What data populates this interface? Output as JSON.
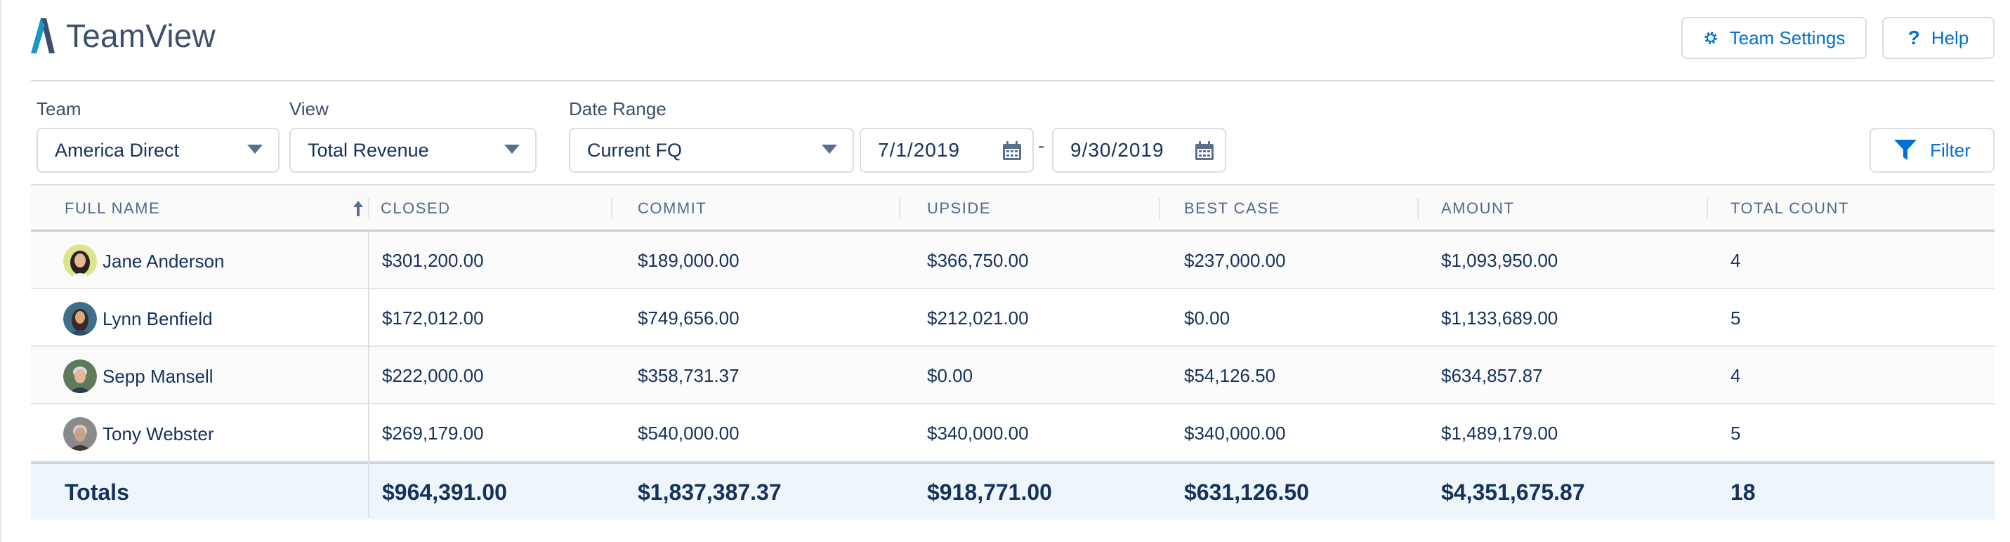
{
  "app": {
    "title": "TeamView"
  },
  "header": {
    "team_settings_label": "Team Settings",
    "help_label": "Help"
  },
  "filters": {
    "team_label": "Team",
    "team_value": "America Direct",
    "view_label": "View",
    "view_value": "Total Revenue",
    "date_range_label": "Date Range",
    "date_range_value": "Current FQ",
    "start_date": "7/1/2019",
    "separator": "-",
    "end_date": "9/30/2019",
    "filter_label": "Filter"
  },
  "table": {
    "columns": [
      "FULL NAME",
      "CLOSED",
      "COMMIT",
      "UPSIDE",
      "BEST CASE",
      "AMOUNT",
      "TOTAL COUNT"
    ],
    "sorted_column": "FULL NAME",
    "sort_direction": "ascending",
    "rows": [
      {
        "name": "Jane Anderson",
        "closed": "$301,200.00",
        "commit": "$189,000.00",
        "upside": "$366,750.00",
        "best_case": "$237,000.00",
        "amount": "$1,093,950.00",
        "total_count": "4"
      },
      {
        "name": "Lynn Benfield",
        "closed": "$172,012.00",
        "commit": "$749,656.00",
        "upside": "$212,021.00",
        "best_case": "$0.00",
        "amount": "$1,133,689.00",
        "total_count": "5"
      },
      {
        "name": "Sepp Mansell",
        "closed": "$222,000.00",
        "commit": "$358,731.37",
        "upside": "$0.00",
        "best_case": "$54,126.50",
        "amount": "$634,857.87",
        "total_count": "4"
      },
      {
        "name": "Tony Webster",
        "closed": "$269,179.00",
        "commit": "$540,000.00",
        "upside": "$340,000.00",
        "best_case": "$340,000.00",
        "amount": "$1,489,179.00",
        "total_count": "5"
      }
    ],
    "totals": {
      "label": "Totals",
      "closed": "$964,391.00",
      "commit": "$1,837,387.37",
      "upside": "$918,771.00",
      "best_case": "$631,126.50",
      "amount": "$4,351,675.87",
      "total_count": "18"
    }
  },
  "colors": {
    "accent": "#0070d2",
    "text": "#16325c",
    "totals_bg": "#eef6fc",
    "logo_blue": "#1798c1"
  },
  "icons": [
    "brand-logo-icon",
    "gear-icon",
    "question-icon",
    "caret-down-icon",
    "calendar-icon",
    "filter-funnel-icon",
    "sort-ascending-arrow-icon"
  ]
}
